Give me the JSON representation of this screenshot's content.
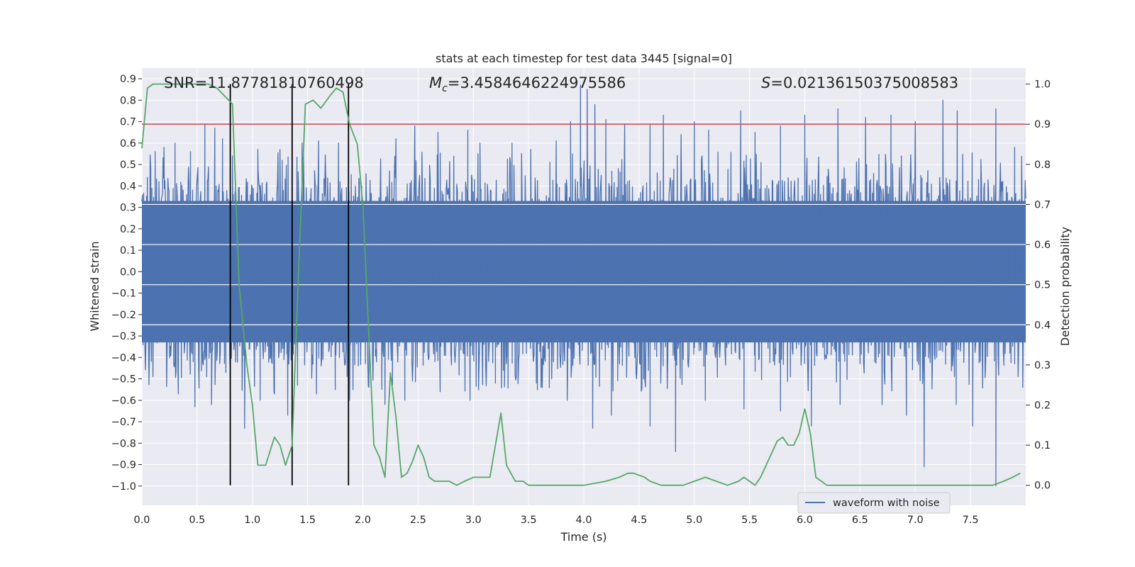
{
  "chart_data": {
    "type": "line",
    "title": "stats at each timestep for test data 3445 [signal=0]",
    "xlabel": "Time (s)",
    "ylabel_left": "Whitened strain",
    "ylabel_right": "Detection probability",
    "xlim": [
      0.0,
      8.0
    ],
    "ylim_left": [
      -1.09,
      0.95
    ],
    "ylim_right": [
      -0.05,
      1.04
    ],
    "x_ticks": [
      "0.0",
      "0.5",
      "1.0",
      "1.5",
      "2.0",
      "2.5",
      "3.0",
      "3.5",
      "4.0",
      "4.5",
      "5.0",
      "5.5",
      "6.0",
      "6.5",
      "7.0",
      "7.5"
    ],
    "y_ticks_left": [
      "0.9",
      "0.8",
      "0.7",
      "0.6",
      "0.5",
      "0.4",
      "0.3",
      "0.2",
      "0.1",
      "0.0",
      "−0.1",
      "−0.2",
      "−0.3",
      "−0.4",
      "−0.5",
      "−0.6",
      "−0.7",
      "−0.8",
      "−0.9",
      "−1.0"
    ],
    "y_ticks_right": [
      "1.0",
      "0.9",
      "0.8",
      "0.7",
      "0.6",
      "0.5",
      "0.4",
      "0.3",
      "0.2",
      "0.1",
      "0.0"
    ],
    "grid": true,
    "legend": {
      "position": "lower-right",
      "entries": [
        {
          "label": "waveform with noise",
          "color": "#4c72b0"
        }
      ]
    },
    "annotations": {
      "snr": {
        "prefix": "SNR=",
        "value": "11.87781810760498"
      },
      "mc": {
        "symbol": "M",
        "subscript": "c",
        "value": "=3.4584646224975586"
      },
      "s": {
        "symbol": "S",
        "value": "=0.02136150375008583"
      }
    },
    "threshold": {
      "value": 0.9,
      "axis": "right",
      "color": "#c44e52"
    },
    "vertical_markers": [
      0.8,
      1.36,
      1.87
    ],
    "waveform": {
      "name": "waveform with noise",
      "color": "#4c72b0",
      "t_range": [
        0.0,
        8.0
      ],
      "band": [
        -0.33,
        0.33
      ],
      "spikes": [
        {
          "t": 0.05,
          "v": 0.44
        },
        {
          "t": 0.12,
          "v": 0.56
        },
        {
          "t": 0.2,
          "v": 0.58
        },
        {
          "t": 0.3,
          "v": 0.6
        },
        {
          "t": 0.44,
          "v": 0.56
        },
        {
          "t": 0.57,
          "v": 0.69
        },
        {
          "t": 0.66,
          "v": 0.67
        },
        {
          "t": 0.73,
          "v": 0.62
        },
        {
          "t": 0.82,
          "v": 0.54
        },
        {
          "t": 1.05,
          "v": 0.57
        },
        {
          "t": 1.25,
          "v": 0.57
        },
        {
          "t": 1.45,
          "v": 0.6
        },
        {
          "t": 1.6,
          "v": 0.61
        },
        {
          "t": 1.78,
          "v": 0.6
        },
        {
          "t": 2.3,
          "v": 0.62
        },
        {
          "t": 2.47,
          "v": 0.68
        },
        {
          "t": 2.68,
          "v": 0.65
        },
        {
          "t": 2.95,
          "v": 0.66
        },
        {
          "t": 3.06,
          "v": 0.6
        },
        {
          "t": 3.35,
          "v": 0.6
        },
        {
          "t": 3.52,
          "v": 0.57
        },
        {
          "t": 3.75,
          "v": 0.61
        },
        {
          "t": 3.88,
          "v": 0.7
        },
        {
          "t": 3.97,
          "v": 0.87
        },
        {
          "t": 4.03,
          "v": 0.85
        },
        {
          "t": 4.1,
          "v": 0.78
        },
        {
          "t": 4.2,
          "v": 0.71
        },
        {
          "t": 4.37,
          "v": 0.69
        },
        {
          "t": 4.6,
          "v": 0.69
        },
        {
          "t": 4.72,
          "v": 0.73
        },
        {
          "t": 4.88,
          "v": 0.64
        },
        {
          "t": 5.0,
          "v": 0.7
        },
        {
          "t": 5.13,
          "v": 0.66
        },
        {
          "t": 5.42,
          "v": 0.75
        },
        {
          "t": 5.55,
          "v": 0.65
        },
        {
          "t": 5.78,
          "v": 0.68
        },
        {
          "t": 6.0,
          "v": 0.73
        },
        {
          "t": 6.3,
          "v": 0.76
        },
        {
          "t": 6.55,
          "v": 0.72
        },
        {
          "t": 6.78,
          "v": 0.73
        },
        {
          "t": 7.0,
          "v": 0.7
        },
        {
          "t": 7.25,
          "v": 0.8
        },
        {
          "t": 7.38,
          "v": 0.75
        },
        {
          "t": 7.73,
          "v": 0.76
        },
        {
          "t": 7.9,
          "v": 0.58
        },
        {
          "t": 0.1,
          "v": -0.49
        },
        {
          "t": 0.33,
          "v": -0.57
        },
        {
          "t": 0.48,
          "v": -0.63
        },
        {
          "t": 0.63,
          "v": -0.62
        },
        {
          "t": 0.76,
          "v": -0.47
        },
        {
          "t": 0.93,
          "v": -0.73
        },
        {
          "t": 1.07,
          "v": -0.6
        },
        {
          "t": 1.2,
          "v": -0.57
        },
        {
          "t": 1.32,
          "v": -0.67
        },
        {
          "t": 1.58,
          "v": -0.57
        },
        {
          "t": 1.75,
          "v": -0.55
        },
        {
          "t": 1.88,
          "v": -0.6
        },
        {
          "t": 2.2,
          "v": -0.62
        },
        {
          "t": 2.38,
          "v": -0.6
        },
        {
          "t": 2.7,
          "v": -0.56
        },
        {
          "t": 2.97,
          "v": -0.6
        },
        {
          "t": 3.2,
          "v": -0.52
        },
        {
          "t": 3.58,
          "v": -0.55
        },
        {
          "t": 3.85,
          "v": -0.6
        },
        {
          "t": 4.08,
          "v": -0.73
        },
        {
          "t": 4.25,
          "v": -0.67
        },
        {
          "t": 4.6,
          "v": -0.72
        },
        {
          "t": 4.83,
          "v": -0.84
        },
        {
          "t": 5.1,
          "v": -0.6
        },
        {
          "t": 5.45,
          "v": -0.64
        },
        {
          "t": 5.78,
          "v": -0.65
        },
        {
          "t": 6.06,
          "v": -0.72
        },
        {
          "t": 6.32,
          "v": -0.62
        },
        {
          "t": 6.7,
          "v": -0.62
        },
        {
          "t": 6.92,
          "v": -0.67
        },
        {
          "t": 7.08,
          "v": -0.91
        },
        {
          "t": 7.37,
          "v": -0.62
        },
        {
          "t": 7.52,
          "v": -0.72
        },
        {
          "t": 7.73,
          "v": -1.0
        },
        {
          "t": 7.9,
          "v": -0.43
        }
      ]
    },
    "detection_probability": {
      "name": "",
      "color": "#55a868",
      "x": [
        0.0,
        0.05,
        0.1,
        0.15,
        0.25,
        0.4,
        0.6,
        0.68,
        0.75,
        0.82,
        0.88,
        0.95,
        1.0,
        1.05,
        1.12,
        1.2,
        1.25,
        1.3,
        1.36,
        1.42,
        1.48,
        1.55,
        1.62,
        1.7,
        1.76,
        1.82,
        1.88,
        1.95,
        2.0,
        2.05,
        2.1,
        2.15,
        2.2,
        2.25,
        2.3,
        2.35,
        2.4,
        2.45,
        2.5,
        2.55,
        2.6,
        2.65,
        2.7,
        2.78,
        2.85,
        2.92,
        3.0,
        3.07,
        3.15,
        3.2,
        3.25,
        3.3,
        3.38,
        3.45,
        3.5,
        3.6,
        3.7,
        3.8,
        4.0,
        4.2,
        4.32,
        4.4,
        4.45,
        4.55,
        4.6,
        4.7,
        4.8,
        4.9,
        5.0,
        5.1,
        5.2,
        5.3,
        5.4,
        5.45,
        5.5,
        5.55,
        5.6,
        5.65,
        5.7,
        5.75,
        5.8,
        5.85,
        5.9,
        5.95,
        6.0,
        6.05,
        6.1,
        6.15,
        6.2,
        6.25,
        6.3,
        6.4,
        6.5,
        6.6,
        6.7,
        6.8,
        6.9,
        7.0,
        7.2,
        7.4,
        7.6,
        7.7,
        7.8,
        7.88,
        7.95
      ],
      "y": [
        0.84,
        0.99,
        1.0,
        1.0,
        1.0,
        1.0,
        1.0,
        0.99,
        0.97,
        0.95,
        0.5,
        0.3,
        0.2,
        0.05,
        0.05,
        0.12,
        0.1,
        0.05,
        0.1,
        0.55,
        0.95,
        0.96,
        0.94,
        0.97,
        0.99,
        0.98,
        0.9,
        0.85,
        0.7,
        0.4,
        0.1,
        0.07,
        0.02,
        0.28,
        0.17,
        0.02,
        0.03,
        0.06,
        0.1,
        0.07,
        0.02,
        0.01,
        0.01,
        0.01,
        0.0,
        0.01,
        0.02,
        0.02,
        0.02,
        0.1,
        0.18,
        0.05,
        0.01,
        0.01,
        0.0,
        0.0,
        0.0,
        0.0,
        0.0,
        0.01,
        0.02,
        0.03,
        0.03,
        0.02,
        0.01,
        0.0,
        0.0,
        0.0,
        0.01,
        0.02,
        0.01,
        0.0,
        0.01,
        0.02,
        0.01,
        0.0,
        0.02,
        0.05,
        0.08,
        0.11,
        0.12,
        0.1,
        0.1,
        0.13,
        0.19,
        0.13,
        0.02,
        0.01,
        0.0,
        0.0,
        0.0,
        0.0,
        0.0,
        0.0,
        0.0,
        0.0,
        0.0,
        0.0,
        0.0,
        0.0,
        0.0,
        0.0,
        0.01,
        0.02,
        0.03
      ]
    }
  }
}
